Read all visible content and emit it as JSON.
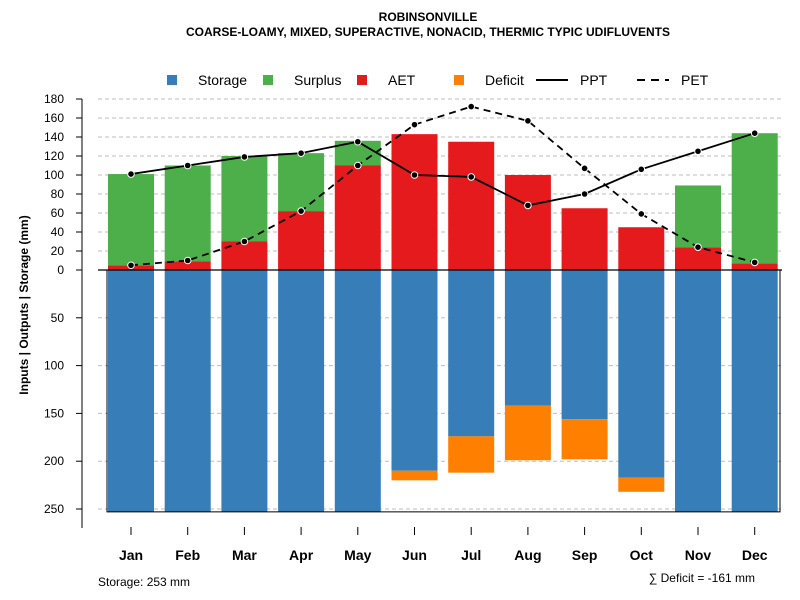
{
  "chart_data": {
    "type": "bar",
    "title": "ROBINSONVILLE",
    "subtitle": "COARSE-LOAMY, MIXED, SUPERACTIVE, NONACID, THERMIC TYPIC UDIFLUVENTS",
    "ylabel": "Inputs | Outputs | Storage    (mm)",
    "categories": [
      "Jan",
      "Feb",
      "Mar",
      "Apr",
      "May",
      "Jun",
      "Jul",
      "Aug",
      "Sep",
      "Oct",
      "Nov",
      "Dec"
    ],
    "upper_ticks": [
      0,
      20,
      40,
      60,
      80,
      100,
      120,
      140,
      160,
      180
    ],
    "lower_ticks": [
      50,
      100,
      150,
      200,
      250
    ],
    "upper_ylim": [
      0,
      180
    ],
    "lower_ylim": [
      0,
      253
    ],
    "legend": [
      {
        "name": "Storage",
        "kind": "box",
        "color": "#377EB8"
      },
      {
        "name": "Surplus",
        "kind": "box",
        "color": "#4DAF4A"
      },
      {
        "name": "AET",
        "kind": "box",
        "color": "#E41A1C"
      },
      {
        "name": "Deficit",
        "kind": "box",
        "color": "#FF7F00"
      },
      {
        "name": "PPT",
        "kind": "solid",
        "color": "#000000"
      },
      {
        "name": "PET",
        "kind": "dashed",
        "color": "#000000"
      }
    ],
    "series": [
      {
        "name": "AET",
        "color": "#E41A1C",
        "values": [
          5,
          9,
          30,
          62,
          110,
          143,
          135,
          100,
          65,
          45,
          24,
          7
        ]
      },
      {
        "name": "Surplus",
        "color": "#4DAF4A",
        "values": [
          96,
          101,
          90,
          61,
          26,
          0,
          0,
          0,
          0,
          0,
          65,
          137
        ]
      },
      {
        "name": "PPT",
        "values": [
          101,
          110,
          119,
          123,
          135,
          100,
          98,
          68,
          80,
          106,
          125,
          144
        ]
      },
      {
        "name": "PET",
        "values": [
          5,
          10,
          30,
          62,
          110,
          153,
          172,
          157,
          107,
          59,
          24,
          8
        ]
      },
      {
        "name": "Storage",
        "color": "#377EB8",
        "values": [
          253,
          253,
          253,
          253,
          253,
          210,
          174,
          142,
          156,
          217,
          253,
          253
        ]
      },
      {
        "name": "Deficit",
        "color": "#FF7F00",
        "values": [
          0,
          0,
          0,
          0,
          0,
          10,
          38,
          57,
          42,
          15,
          0,
          0
        ]
      }
    ],
    "storage_note": "Storage: 253 mm",
    "deficit_note": "∑ Deficit = -161 mm"
  }
}
